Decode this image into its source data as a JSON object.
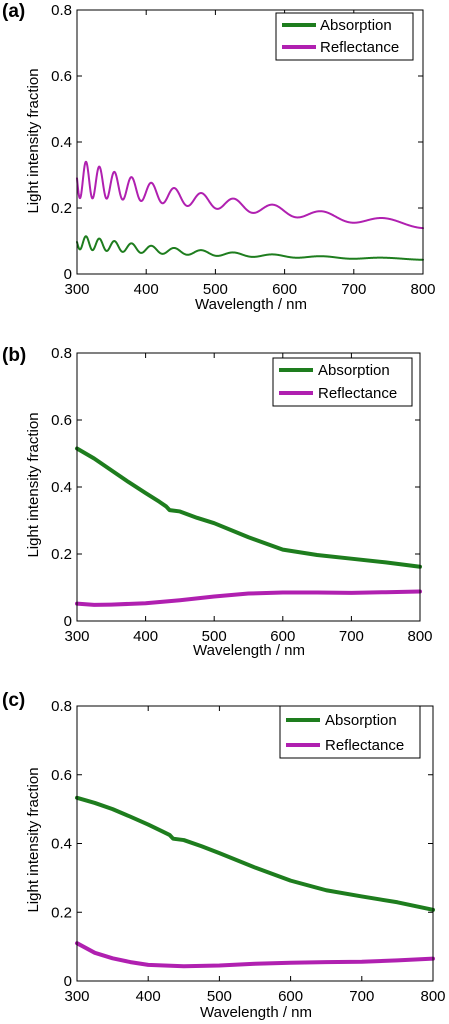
{
  "chart_data": [
    {
      "type": "line",
      "panel_label": "(a)",
      "xlabel": "Wavelength / nm",
      "ylabel": "Light intensity fraction",
      "xlim": [
        300,
        800
      ],
      "ylim": [
        0,
        0.8
      ],
      "xticks": [
        "300",
        "400",
        "500",
        "600",
        "700",
        "800"
      ],
      "yticks": [
        "0",
        "0.2",
        "0.4",
        "0.6",
        "0.8"
      ],
      "legend": "top-right",
      "grid": false,
      "series": [
        {
          "name": "Absorption",
          "color": "#1e7d1e",
          "oscillating": true,
          "x": [
            300,
            350,
            400,
            450,
            500,
            550,
            600,
            650,
            700,
            750,
            800
          ],
          "y": [
            0.097,
            0.085,
            0.075,
            0.068,
            0.062,
            0.057,
            0.054,
            0.051,
            0.049,
            0.047,
            0.045
          ],
          "amplitude": [
            0.022,
            0.016,
            0.012,
            0.009,
            0.007,
            0.005,
            0.004,
            0.003,
            0.003,
            0.002,
            0.002
          ]
        },
        {
          "name": "Reflectance",
          "color": "#b020b0",
          "oscillating": true,
          "x": [
            300,
            350,
            400,
            450,
            500,
            550,
            600,
            650,
            700,
            750,
            800
          ],
          "y": [
            0.29,
            0.27,
            0.25,
            0.232,
            0.218,
            0.203,
            0.19,
            0.178,
            0.167,
            0.157,
            0.149
          ],
          "amplitude": [
            0.06,
            0.042,
            0.03,
            0.024,
            0.02,
            0.017,
            0.015,
            0.013,
            0.012,
            0.011,
            0.01
          ]
        }
      ]
    },
    {
      "type": "line",
      "panel_label": "(b)",
      "xlabel": "Wavelength / nm",
      "ylabel": "Light intensity fraction",
      "xlim": [
        300,
        800
      ],
      "ylim": [
        0,
        0.8
      ],
      "xticks": [
        "300",
        "400",
        "500",
        "600",
        "700",
        "800"
      ],
      "yticks": [
        "0",
        "0.2",
        "0.4",
        "0.6",
        "0.8"
      ],
      "legend": "top-right",
      "grid": false,
      "series": [
        {
          "name": "Absorption",
          "color": "#1e7d1e",
          "x": [
            300,
            325,
            350,
            375,
            400,
            420,
            430,
            435,
            450,
            475,
            500,
            550,
            600,
            650,
            700,
            750,
            800
          ],
          "y": [
            0.515,
            0.485,
            0.45,
            0.415,
            0.382,
            0.356,
            0.342,
            0.331,
            0.327,
            0.308,
            0.292,
            0.25,
            0.213,
            0.197,
            0.186,
            0.175,
            0.162
          ]
        },
        {
          "name": "Reflectance",
          "color": "#b020b0",
          "x": [
            300,
            325,
            350,
            400,
            450,
            500,
            550,
            600,
            650,
            700,
            750,
            800
          ],
          "y": [
            0.052,
            0.048,
            0.049,
            0.053,
            0.062,
            0.073,
            0.082,
            0.085,
            0.085,
            0.084,
            0.086,
            0.088
          ]
        }
      ]
    },
    {
      "type": "line",
      "panel_label": "(c)",
      "xlabel": "Wavelength / nm",
      "ylabel": "Light intensity fraction",
      "xlim": [
        300,
        800
      ],
      "ylim": [
        0,
        0.8
      ],
      "xticks": [
        "300",
        "400",
        "500",
        "600",
        "700",
        "800"
      ],
      "yticks": [
        "0",
        "0.2",
        "0.4",
        "0.6",
        "0.8"
      ],
      "legend": "top-right",
      "grid": false,
      "series": [
        {
          "name": "Absorption",
          "color": "#1e7d1e",
          "x": [
            300,
            325,
            350,
            375,
            400,
            420,
            430,
            435,
            450,
            475,
            500,
            550,
            600,
            650,
            700,
            750,
            800
          ],
          "y": [
            0.533,
            0.518,
            0.5,
            0.478,
            0.455,
            0.435,
            0.425,
            0.414,
            0.41,
            0.392,
            0.372,
            0.33,
            0.292,
            0.264,
            0.246,
            0.229,
            0.207
          ]
        },
        {
          "name": "Reflectance",
          "color": "#b020b0",
          "x": [
            300,
            325,
            350,
            375,
            400,
            450,
            500,
            550,
            600,
            650,
            700,
            750,
            800
          ],
          "y": [
            0.11,
            0.082,
            0.066,
            0.055,
            0.047,
            0.043,
            0.045,
            0.05,
            0.053,
            0.055,
            0.056,
            0.06,
            0.065
          ]
        }
      ]
    }
  ]
}
